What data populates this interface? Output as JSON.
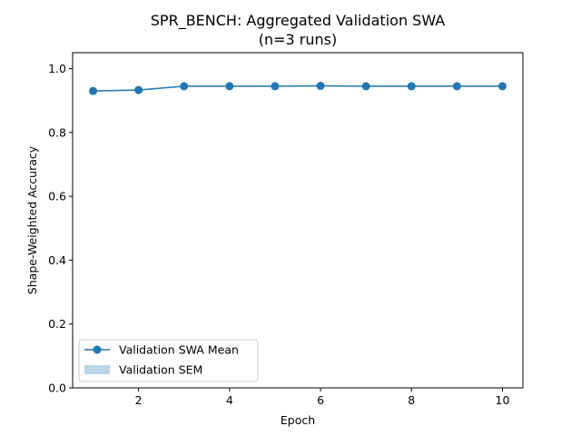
{
  "chart_data": {
    "type": "line",
    "title_line1": "SPR_BENCH: Aggregated Validation SWA",
    "title_line2": "(n=3 runs)",
    "xlabel": "Epoch",
    "ylabel": "Shape-Weighted Accuracy",
    "xlim": [
      0.55,
      10.45
    ],
    "ylim": [
      0.0,
      1.05
    ],
    "xticks": [
      2,
      4,
      6,
      8,
      10
    ],
    "yticks": [
      0.0,
      0.2,
      0.4,
      0.6,
      0.8,
      1.0
    ],
    "ytick_labels": [
      "0.0",
      "0.2",
      "0.4",
      "0.6",
      "0.8",
      "1.0"
    ],
    "grid": false,
    "legend_position": "lower-left",
    "series": [
      {
        "name": "Validation SWA Mean",
        "color": "#1f77b4",
        "x": [
          1,
          2,
          3,
          4,
          5,
          6,
          7,
          8,
          9,
          10
        ],
        "y": [
          0.93,
          0.933,
          0.945,
          0.945,
          0.945,
          0.946,
          0.945,
          0.945,
          0.945,
          0.945
        ],
        "sem": [
          0.002,
          0.002,
          0.002,
          0.002,
          0.002,
          0.002,
          0.002,
          0.002,
          0.002,
          0.002
        ]
      }
    ],
    "band_legend": "Validation SEM",
    "band_color": "#1f77b4"
  }
}
